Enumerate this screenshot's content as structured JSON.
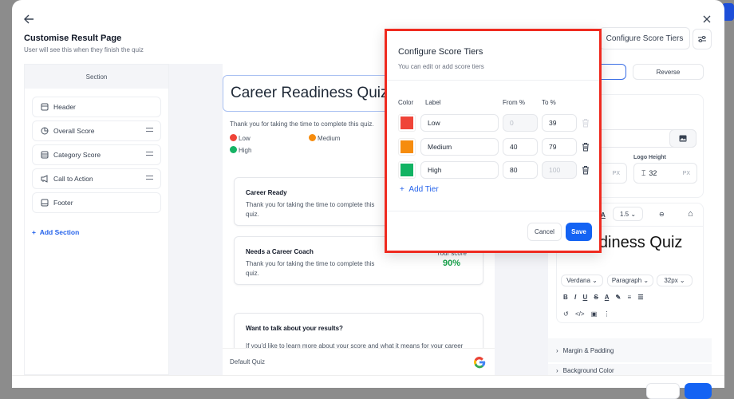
{
  "header": {
    "title": "Customise Result Page",
    "subtitle": "User will see this when they finish the quiz",
    "configure_label": "Configure Score Tiers"
  },
  "sidebar": {
    "heading": "Section",
    "items": [
      {
        "label": "Header",
        "icon": "layout-top-icon"
      },
      {
        "label": "Overall Score",
        "icon": "pie-chart-icon"
      },
      {
        "label": "Category Score",
        "icon": "database-icon"
      },
      {
        "label": "Call to Action",
        "icon": "megaphone-icon"
      },
      {
        "label": "Footer",
        "icon": "layout-bottom-icon"
      }
    ],
    "add_label": "Add Section"
  },
  "preview": {
    "title": "Career Readiness Quiz",
    "intro": "Thank you for taking the time to complete this quiz.",
    "legend": [
      {
        "label": "Low",
        "color": "#ef4438"
      },
      {
        "label": "Medium",
        "color": "#f68c0e"
      },
      {
        "label": "High",
        "color": "#16b364"
      }
    ],
    "cards": [
      {
        "title": "Career Ready",
        "text": "Thank you for taking the time to complete this quiz."
      },
      {
        "title": "Needs a Career Coach",
        "text": "Thank you for taking the time to complete this quiz.",
        "score_label": "Your score",
        "score": "90%"
      }
    ],
    "cta": {
      "title": "Want to talk about your results?",
      "text": "If you'd like to learn more about your score and what it means for your career"
    },
    "footer": "Default Quiz"
  },
  "settings": {
    "tab_reverse": "Reverse",
    "logo_height_label": "Logo Height",
    "logo_height": "32",
    "unit": "PX",
    "line_height": "1.5",
    "editor_text": "r Readiness Quiz",
    "font": "Verdana",
    "block": "Paragraph",
    "size": "32px",
    "accordions": [
      "Margin & Padding",
      "Background Color"
    ]
  },
  "modal": {
    "title": "Configure Score Tiers",
    "subtitle": "You can edit or add score tiers",
    "cols": [
      "Color",
      "Label",
      "From %",
      "To %"
    ],
    "tiers": [
      {
        "color": "#ef4438",
        "label": "Low",
        "from": "0",
        "to": "39"
      },
      {
        "color": "#f68c0e",
        "label": "Medium",
        "from": "40",
        "to": "79"
      },
      {
        "color": "#12b363",
        "label": "High",
        "from": "80",
        "to": "100"
      }
    ],
    "add_label": "Add Tier",
    "cancel": "Cancel",
    "save": "Save",
    "accent": "#1463f3"
  }
}
